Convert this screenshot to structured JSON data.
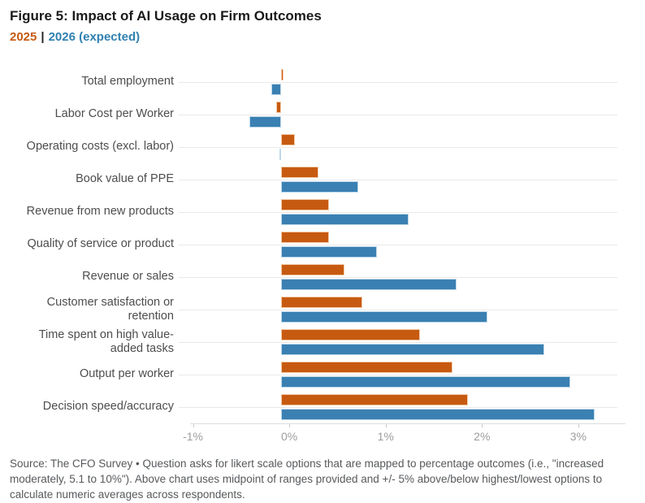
{
  "header": {
    "title": "Figure 5: Impact of AI Usage on Firm Outcomes",
    "legend_separator": "|",
    "legend": [
      {
        "label": "2025",
        "color": "#c45a12"
      },
      {
        "label": "2026 (expected)",
        "color": "#2f80b0"
      }
    ]
  },
  "chart_data": {
    "type": "bar",
    "orientation": "horizontal",
    "title": "Figure 5: Impact of AI Usage on Firm Outcomes",
    "unit": "%",
    "xlim": [
      -1.03,
      3.49
    ],
    "grid": "horizontal category gridlines, no vertical gridlines",
    "legend_position": "top-left",
    "categories": [
      "Total employment",
      "Labor Cost per Worker",
      "Operating costs (excl. labor)",
      "Book value of PPE",
      "Revenue from new products",
      "Quality of service or product",
      "Revenue or sales",
      "Customer satisfaction or retention",
      "Time spent on high value-added tasks",
      "Output per worker",
      "Decision speed/accuracy"
    ],
    "series": [
      {
        "name": "2025",
        "color": "#c75a11",
        "border_color": "#f2cba8",
        "values": [
          0.02,
          -0.05,
          0.14,
          0.39,
          0.5,
          0.5,
          0.66,
          0.84,
          1.44,
          1.78,
          1.94
        ]
      },
      {
        "name": "2026 (expected)",
        "color": "#3a80b2",
        "border_color": "#bfd8ea",
        "values": [
          -0.1,
          -0.33,
          -0.02,
          0.8,
          1.32,
          0.99,
          1.82,
          2.14,
          2.73,
          3.0,
          3.25
        ]
      }
    ],
    "x_ticks": [
      {
        "value": -1,
        "label": "-1%"
      },
      {
        "value": 0,
        "label": "0%"
      },
      {
        "value": 1,
        "label": "1%"
      },
      {
        "value": 2,
        "label": "2%"
      },
      {
        "value": 3,
        "label": "3%"
      }
    ]
  },
  "footer": {
    "source": "Source: The CFO Survey • Question asks for likert scale options that are mapped to percentage outcomes (i.e., \"increased moderately, 5.1 to 10%\"). Above chart uses midpoint of ranges provided and +/- 5% above/below highest/lowest options to calculate numeric averages across respondents."
  }
}
